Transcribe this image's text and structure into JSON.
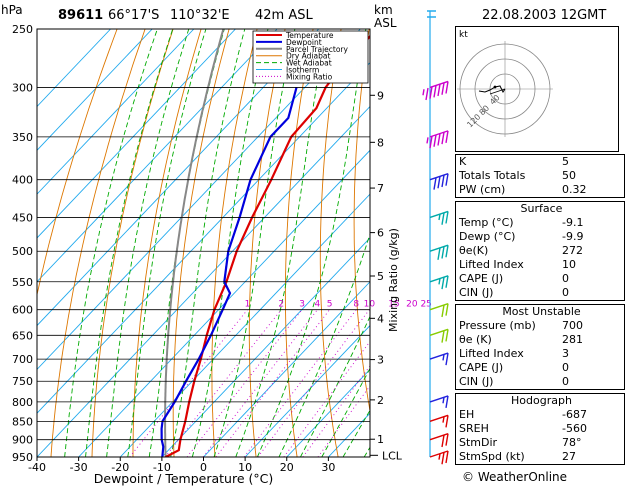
{
  "header": {
    "pressure_unit": "hPa",
    "station": "89611",
    "lat": "66°17'S",
    "lon": "110°32'E",
    "elevation": "42m ASL",
    "km_label": "km",
    "asl_label": "ASL",
    "datetime": "22.08.2003 12GMT"
  },
  "legend": [
    "Temperature",
    "Dewpoint",
    "Parcel Trajectory",
    "Dry Adiabat",
    "Wet Adiabat",
    "Isotherm",
    "Mixing Ratio"
  ],
  "mixing_ratio_axis_label": "Mixing Ratio (g/kg)",
  "lcl_label": "LCL",
  "hodograph": {
    "unit_label": "kt",
    "ring_labels": [
      "40",
      "80",
      "120"
    ]
  },
  "indices": {
    "rows": [
      {
        "label": "K",
        "value": "5"
      },
      {
        "label": "Totals Totals",
        "value": "50"
      },
      {
        "label": "PW (cm)",
        "value": "0.32"
      }
    ]
  },
  "surface": {
    "title": "Surface",
    "rows": [
      {
        "label": "Temp (°C)",
        "value": "-9.1"
      },
      {
        "label": "Dewp (°C)",
        "value": "-9.9"
      },
      {
        "label": "θe(K)",
        "value": "272"
      },
      {
        "label": "Lifted Index",
        "value": "10"
      },
      {
        "label": "CAPE (J)",
        "value": "0"
      },
      {
        "label": "CIN (J)",
        "value": "0"
      }
    ]
  },
  "most_unstable": {
    "title": "Most Unstable",
    "rows": [
      {
        "label": "Pressure (mb)",
        "value": "700"
      },
      {
        "label": "θe (K)",
        "value": "281"
      },
      {
        "label": "Lifted Index",
        "value": "3"
      },
      {
        "label": "CAPE (J)",
        "value": "0"
      },
      {
        "label": "CIN (J)",
        "value": "0"
      }
    ]
  },
  "hodograph_table": {
    "title": "Hodograph",
    "rows": [
      {
        "label": "EH",
        "value": "-687"
      },
      {
        "label": "SREH",
        "value": "-560"
      },
      {
        "label": "StmDir",
        "value": "78°"
      },
      {
        "label": "StmSpd (kt)",
        "value": "27"
      }
    ]
  },
  "credit": "© WeatherOnline",
  "colors": {
    "temperature": "#dd0000",
    "dewpoint": "#0000dd",
    "parcel": "#888888",
    "dry_adiabat": "#dd7700",
    "wet_adiabat": "#00aa00",
    "isotherm": "#22aaee",
    "mixing_ratio": "#cc00cc"
  },
  "chart_data": {
    "type": "line",
    "title": "Skew-T log-P sounding",
    "xlabel": "Dewpoint / Temperature (°C)",
    "ylabel": "hPa",
    "x_ticks": [
      -40,
      -30,
      -20,
      -10,
      0,
      10,
      20,
      30
    ],
    "pressure_levels": [
      250,
      300,
      350,
      400,
      450,
      500,
      550,
      600,
      650,
      700,
      750,
      800,
      850,
      900,
      950
    ],
    "xlim": [
      -40,
      40
    ],
    "ylim": [
      950,
      250
    ],
    "height_ticks_km": [
      1,
      2,
      3,
      4,
      5,
      6,
      7,
      8,
      9
    ],
    "mixing_ratio_labels": [
      "1",
      "2",
      "3",
      "4",
      "5",
      "8",
      "10",
      "15",
      "20",
      "25"
    ],
    "series": [
      {
        "name": "Temperature",
        "points": [
          [
            950,
            -9.1
          ],
          [
            930,
            -7.5
          ],
          [
            900,
            -9.5
          ],
          [
            850,
            -12.5
          ],
          [
            800,
            -16
          ],
          [
            750,
            -19.5
          ],
          [
            700,
            -23
          ],
          [
            650,
            -27
          ],
          [
            600,
            -31
          ],
          [
            550,
            -34.5
          ],
          [
            500,
            -39
          ],
          [
            450,
            -43
          ],
          [
            400,
            -47
          ],
          [
            350,
            -52
          ],
          [
            320,
            -52.5
          ],
          [
            300,
            -55
          ],
          [
            280,
            -56
          ],
          [
            250,
            -56
          ]
        ]
      },
      {
        "name": "Dewpoint",
        "points": [
          [
            950,
            -9.9
          ],
          [
            920,
            -12
          ],
          [
            900,
            -14
          ],
          [
            870,
            -16.5
          ],
          [
            850,
            -18
          ],
          [
            800,
            -19.5
          ],
          [
            750,
            -21.5
          ],
          [
            700,
            -23.5
          ],
          [
            650,
            -26
          ],
          [
            600,
            -29
          ],
          [
            570,
            -31
          ],
          [
            550,
            -35
          ],
          [
            500,
            -41
          ],
          [
            450,
            -46
          ],
          [
            400,
            -52
          ],
          [
            350,
            -57
          ],
          [
            330,
            -57
          ],
          [
            300,
            -62
          ]
        ]
      }
    ],
    "wind_barbs": [
      {
        "pressure": 300,
        "speed_kt": 65
      },
      {
        "pressure": 350,
        "speed_kt": 55
      },
      {
        "pressure": 400,
        "speed_kt": 40
      },
      {
        "pressure": 450,
        "speed_kt": 25
      },
      {
        "pressure": 500,
        "speed_kt": 30
      },
      {
        "pressure": 550,
        "speed_kt": 25
      },
      {
        "pressure": 600,
        "speed_kt": 20
      },
      {
        "pressure": 650,
        "speed_kt": 20
      },
      {
        "pressure": 700,
        "speed_kt": 15
      },
      {
        "pressure": 800,
        "speed_kt": 15
      },
      {
        "pressure": 850,
        "speed_kt": 15
      },
      {
        "pressure": 900,
        "speed_kt": 20
      },
      {
        "pressure": 950,
        "speed_kt": 25
      }
    ]
  }
}
